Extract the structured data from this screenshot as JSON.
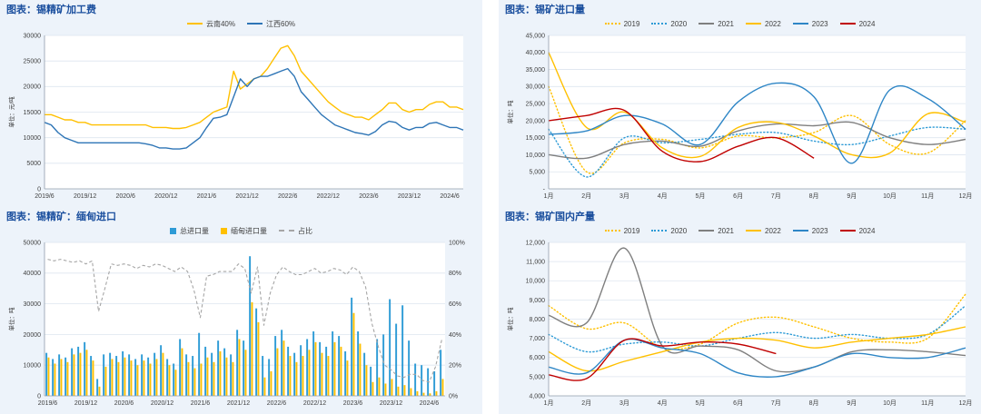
{
  "page": {
    "background": "#ffffff",
    "panel_background": "#edf3fa",
    "title_color": "#1b4f9e",
    "axis_text_color": "#404040",
    "grid_color": "#dde5ef",
    "axis_line_color": "#8f9bab"
  },
  "chart_data": [
    {
      "id": "processing_fee",
      "type": "line",
      "title": "图表：锡精矿加工费",
      "ylabel": "单位：元/吨",
      "ylim": [
        0,
        30000
      ],
      "ytick_step": 5000,
      "ytick_format": "plain",
      "x_count": 63,
      "xtick_indices": [
        0,
        6,
        12,
        18,
        24,
        30,
        36,
        42,
        48,
        54,
        60
      ],
      "xtick_labels": [
        "2019/6",
        "2019/12",
        "2020/6",
        "2020/12",
        "2021/6",
        "2021/12",
        "2022/6",
        "2022/12",
        "2023/6",
        "2023/12",
        "2024/6"
      ],
      "legend_position": "top",
      "grid": true,
      "series": [
        {
          "name": "云南40%",
          "color": "#FFC000",
          "dash": "solid",
          "smooth": false,
          "values": [
            14500,
            14500,
            14000,
            13500,
            13500,
            13000,
            13000,
            12500,
            12500,
            12500,
            12500,
            12500,
            12500,
            12500,
            12500,
            12500,
            12000,
            12000,
            12000,
            11800,
            11800,
            12000,
            12500,
            13000,
            14000,
            15000,
            15500,
            16000,
            23000,
            19500,
            20500,
            21500,
            22000,
            23500,
            25500,
            27500,
            28000,
            26000,
            23000,
            21500,
            20000,
            18500,
            17000,
            16000,
            15000,
            14500,
            14000,
            14000,
            13500,
            14500,
            15500,
            16800,
            16800,
            15500,
            15000,
            15500,
            15500,
            16500,
            17000,
            17000,
            16000,
            16000,
            15500
          ]
        },
        {
          "name": "江西60%",
          "color": "#2E75B6",
          "dash": "solid",
          "smooth": false,
          "values": [
            13000,
            12500,
            11000,
            10000,
            9500,
            9000,
            9000,
            9000,
            9000,
            9000,
            9000,
            9000,
            9000,
            9000,
            9000,
            8800,
            8500,
            8000,
            8000,
            7800,
            7800,
            8000,
            9000,
            10000,
            12000,
            13800,
            14000,
            14500,
            18000,
            21500,
            20000,
            21500,
            22000,
            22000,
            22500,
            23000,
            23500,
            22000,
            19000,
            17500,
            16000,
            14500,
            13500,
            12500,
            12000,
            11500,
            11000,
            10800,
            10500,
            11200,
            12500,
            13200,
            13000,
            12000,
            11500,
            12000,
            12000,
            12800,
            13000,
            12500,
            12000,
            12000,
            11500
          ]
        }
      ]
    },
    {
      "id": "ore_imports",
      "type": "line",
      "title": "图表：锡矿进口量",
      "ylabel": "单位：吨",
      "ylim": [
        0,
        45000
      ],
      "ytick_step": 5000,
      "ytick_format": "comma-dash-zero",
      "x_labels": [
        "1月",
        "2月",
        "3月",
        "4月",
        "5月",
        "6月",
        "7月",
        "8月",
        "9月",
        "10月",
        "11月",
        "12月"
      ],
      "legend_position": "top",
      "grid": true,
      "series": [
        {
          "name": "2019",
          "color": "#FFC000",
          "dash": "dotted",
          "smooth": true,
          "values": [
            30000,
            5000,
            13500,
            14500,
            12000,
            15500,
            15000,
            16500,
            21500,
            13000,
            10500,
            20000
          ]
        },
        {
          "name": "2020",
          "color": "#2E9BD6",
          "dash": "dotted",
          "smooth": true,
          "values": [
            17500,
            3500,
            15000,
            13500,
            14500,
            16000,
            16500,
            14000,
            13000,
            15500,
            18000,
            17500
          ]
        },
        {
          "name": "2021",
          "color": "#7F7F7F",
          "dash": "solid",
          "smooth": true,
          "values": [
            10000,
            9000,
            13000,
            14000,
            12500,
            17000,
            19000,
            18500,
            19500,
            15000,
            13000,
            14500
          ]
        },
        {
          "name": "2022",
          "color": "#FFC000",
          "dash": "solid",
          "smooth": true,
          "values": [
            40000,
            18000,
            22500,
            12000,
            9500,
            18000,
            19500,
            15500,
            10000,
            10500,
            22000,
            19500
          ]
        },
        {
          "name": "2023",
          "color": "#2E86C6",
          "dash": "solid",
          "smooth": true,
          "values": [
            16000,
            17000,
            21500,
            19000,
            13000,
            25500,
            31000,
            27000,
            7500,
            29000,
            26500,
            17500
          ]
        },
        {
          "name": "2024",
          "color": "#C00000",
          "dash": "solid",
          "smooth": true,
          "values": [
            20000,
            21500,
            23000,
            11000,
            8000,
            12500,
            15000,
            9000,
            null,
            null,
            null,
            null
          ]
        }
      ]
    },
    {
      "id": "myanmar_imports",
      "type": "bar-line",
      "title": "图表：锡精矿：缅甸进口",
      "ylabel": "单位：吨",
      "ylim": [
        0,
        50000
      ],
      "ytick_step": 10000,
      "ytick_format": "plain",
      "y2lim": [
        0,
        100
      ],
      "y2tick_step": 20,
      "x_count": 63,
      "xtick_indices": [
        0,
        6,
        12,
        18,
        24,
        30,
        36,
        42,
        48,
        54,
        60
      ],
      "xtick_labels": [
        "2019/6",
        "2019/12",
        "2020/6",
        "2020/12",
        "2021/6",
        "2021/12",
        "2022/6",
        "2022/12",
        "2023/6",
        "2023/12",
        "2024/6"
      ],
      "legend_position": "top",
      "grid": true,
      "series": [
        {
          "name": "总进口量",
          "type": "bar",
          "color": "#2E9BD6",
          "values": [
            14000,
            12000,
            13500,
            12500,
            15500,
            16000,
            17500,
            13000,
            5500,
            13500,
            14000,
            13000,
            14500,
            13500,
            12000,
            13500,
            12500,
            14000,
            16500,
            12000,
            10500,
            18500,
            13500,
            13000,
            20500,
            16000,
            14000,
            18000,
            15500,
            13500,
            21500,
            18000,
            45500,
            28500,
            13000,
            12000,
            19500,
            21500,
            16000,
            14000,
            16500,
            18500,
            21000,
            17500,
            16000,
            21000,
            19500,
            14500,
            32000,
            21000,
            14000,
            9500,
            18500,
            20000,
            31500,
            23500,
            29500,
            18000,
            10500,
            10000,
            9000,
            8000,
            15000
          ]
        },
        {
          "name": "缅甸进口量",
          "type": "bar",
          "color": "#FFC000",
          "values": [
            12500,
            10500,
            12000,
            11000,
            13500,
            14000,
            15000,
            11500,
            3000,
            9500,
            12000,
            11000,
            12500,
            11500,
            10000,
            11500,
            10500,
            12000,
            14000,
            10000,
            8500,
            15500,
            11000,
            9000,
            10500,
            12500,
            11000,
            14500,
            12500,
            11000,
            18500,
            15000,
            30500,
            24000,
            6000,
            8000,
            15500,
            18000,
            13000,
            11000,
            13000,
            15000,
            17500,
            14000,
            13000,
            17500,
            16000,
            11500,
            27000,
            17000,
            10000,
            4500,
            6000,
            4000,
            5500,
            3000,
            3500,
            2500,
            1500,
            1000,
            800,
            1500,
            5500
          ]
        },
        {
          "name": "占比",
          "type": "line",
          "axis": "y2",
          "color": "#A6A6A6",
          "dash": "dashed",
          "smooth": false,
          "values": [
            89,
            88,
            89,
            88,
            87,
            88,
            86,
            88,
            55,
            70,
            86,
            85,
            86,
            85,
            83,
            85,
            84,
            86,
            85,
            83,
            81,
            84,
            81,
            69,
            51,
            78,
            79,
            81,
            81,
            81,
            86,
            83,
            67,
            84,
            46,
            67,
            79,
            84,
            81,
            79,
            79,
            81,
            83,
            80,
            81,
            83,
            82,
            79,
            84,
            81,
            71,
            47,
            32,
            20,
            17,
            13,
            12,
            14,
            14,
            10,
            9,
            19,
            37
          ]
        }
      ]
    },
    {
      "id": "domestic_output",
      "type": "line",
      "title": "图表：锡矿国内产量",
      "ylabel": "单位：吨",
      "ylim": [
        4000,
        12000
      ],
      "ytick_step": 1000,
      "ytick_format": "comma",
      "x_labels": [
        "1月",
        "2月",
        "3月",
        "4月",
        "5月",
        "6月",
        "7月",
        "8月",
        "9月",
        "10月",
        "11月",
        "12月"
      ],
      "legend_position": "top",
      "grid": true,
      "series": [
        {
          "name": "2019",
          "color": "#FFC000",
          "dash": "dotted",
          "smooth": true,
          "values": [
            8700,
            7500,
            7800,
            6500,
            6700,
            7800,
            8100,
            7600,
            7000,
            6800,
            7000,
            9300
          ]
        },
        {
          "name": "2020",
          "color": "#2E9BD6",
          "dash": "dotted",
          "smooth": true,
          "values": [
            7200,
            6300,
            6700,
            6800,
            6600,
            7000,
            7300,
            7000,
            7200,
            7000,
            7200,
            8700
          ]
        },
        {
          "name": "2021",
          "color": "#7F7F7F",
          "dash": "solid",
          "smooth": true,
          "values": [
            8200,
            7800,
            11700,
            6600,
            6600,
            6400,
            5300,
            5500,
            6300,
            6400,
            6300,
            6100
          ]
        },
        {
          "name": "2022",
          "color": "#FFC000",
          "dash": "solid",
          "smooth": true,
          "values": [
            6300,
            5300,
            5800,
            6300,
            6800,
            7000,
            6900,
            6500,
            6800,
            7000,
            7200,
            7600
          ]
        },
        {
          "name": "2023",
          "color": "#2E86C6",
          "dash": "solid",
          "smooth": true,
          "values": [
            5500,
            5200,
            6900,
            6500,
            6200,
            5200,
            5000,
            5500,
            6200,
            6000,
            6000,
            6500
          ]
        },
        {
          "name": "2024",
          "color": "#C00000",
          "dash": "solid",
          "smooth": true,
          "values": [
            5100,
            4900,
            6900,
            6600,
            6800,
            6700,
            6200,
            null,
            null,
            null,
            null,
            null
          ]
        }
      ]
    }
  ]
}
